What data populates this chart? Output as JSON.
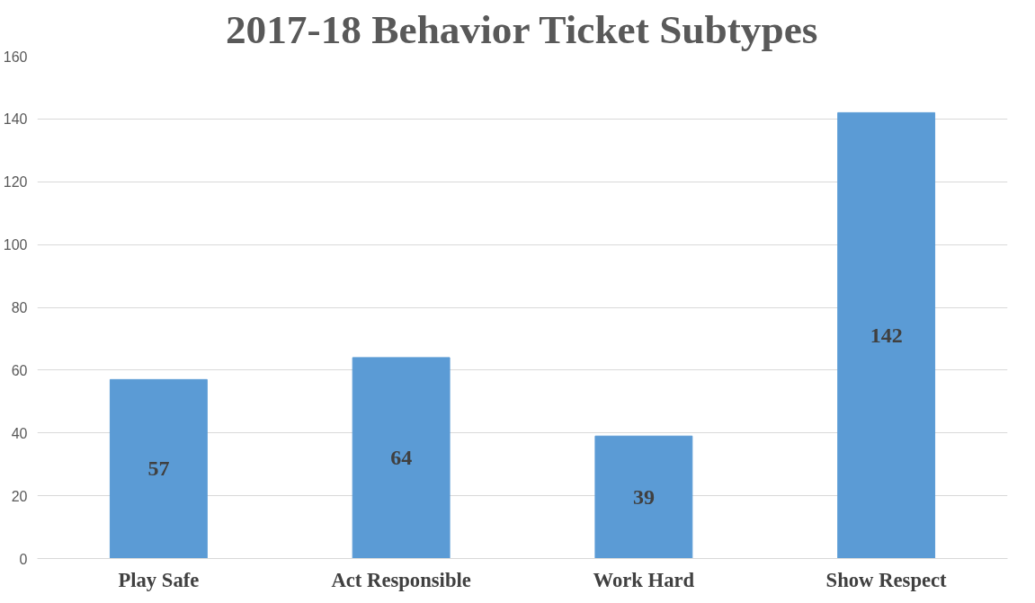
{
  "chart_data": {
    "type": "bar",
    "title": "2017-18 Behavior Ticket Subtypes",
    "categories": [
      "Play Safe",
      "Act Responsible",
      "Work Hard",
      "Show Respect"
    ],
    "values": [
      57,
      64,
      39,
      142
    ],
    "color": "#5b9bd5",
    "ylim": [
      0,
      160
    ],
    "yticks": [
      0,
      20,
      40,
      60,
      80,
      100,
      120,
      140,
      160
    ],
    "grid": "y",
    "data_labels": true
  }
}
